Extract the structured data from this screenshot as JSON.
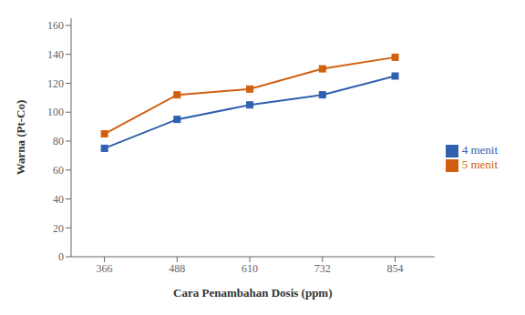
{
  "chart_data": {
    "type": "line",
    "x": [
      366,
      488,
      610,
      732,
      854
    ],
    "series": [
      {
        "name": "4 menit",
        "color": "#3060b0",
        "values": [
          75,
          95,
          105,
          112,
          125
        ],
        "marker": "square"
      },
      {
        "name": "5 menit",
        "color": "#d06010",
        "values": [
          85,
          112,
          116,
          130,
          138
        ],
        "marker": "square"
      }
    ],
    "xlabel": "Cara Penambahan Dosis (ppm)",
    "ylabel": "Warna  (Pt-Co)",
    "xlim": [
      310,
      920
    ],
    "xticks": [
      366,
      488,
      610,
      732,
      854
    ],
    "ylim": [
      0,
      165
    ],
    "yticks": [
      0,
      20,
      40,
      60,
      80,
      100,
      120,
      140,
      160
    ],
    "grid": false,
    "legend": "right"
  }
}
